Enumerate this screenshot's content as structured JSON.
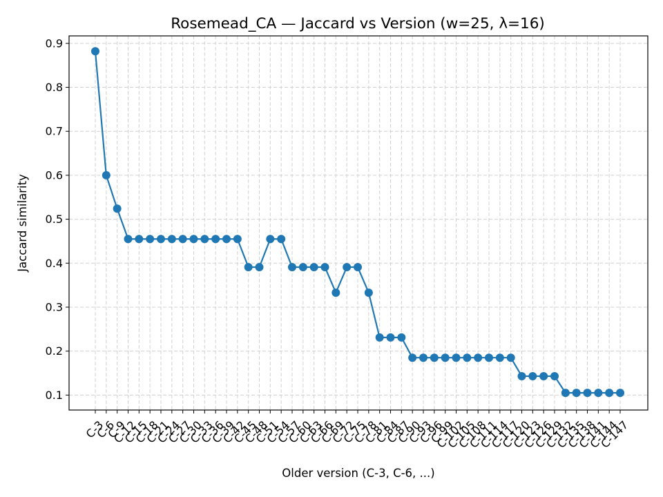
{
  "chart_data": {
    "type": "line",
    "title": "Rosemead_CA — Jaccard vs Version (w=25, λ=16)",
    "xlabel": "Older version (C-3, C-6, ...)",
    "ylabel": "Jaccard similarity",
    "grid": true,
    "line_color": "#1f77b4",
    "ylim": [
      0.066,
      0.917
    ],
    "yticks": [
      0.1,
      0.2,
      0.3,
      0.4,
      0.5,
      0.6,
      0.7,
      0.8,
      0.9
    ],
    "ytick_labels": [
      "0.1",
      "0.2",
      "0.3",
      "0.4",
      "0.5",
      "0.6",
      "0.7",
      "0.8",
      "0.9"
    ],
    "categories": [
      "C-3",
      "C-6",
      "C-9",
      "C-12",
      "C-15",
      "C-18",
      "C-21",
      "C-24",
      "C-27",
      "C-30",
      "C-33",
      "C-36",
      "C-39",
      "C-42",
      "C-45",
      "C-48",
      "C-51",
      "C-54",
      "C-57",
      "C-60",
      "C-63",
      "C-66",
      "C-69",
      "C-72",
      "C-75",
      "C-78",
      "C-81",
      "C-84",
      "C-87",
      "C-90",
      "C-93",
      "C-96",
      "C-99",
      "C-102",
      "C-105",
      "C-108",
      "C-111",
      "C-114",
      "C-117",
      "C-120",
      "C-123",
      "C-126",
      "C-129",
      "C-132",
      "C-135",
      "C-138",
      "C-141",
      "C-144",
      "C-147"
    ],
    "series": [
      {
        "values": [
          0.882,
          0.6,
          0.524,
          0.455,
          0.455,
          0.455,
          0.455,
          0.455,
          0.455,
          0.455,
          0.455,
          0.455,
          0.455,
          0.455,
          0.391,
          0.391,
          0.455,
          0.455,
          0.391,
          0.391,
          0.391,
          0.391,
          0.333,
          0.391,
          0.391,
          0.333,
          0.231,
          0.231,
          0.231,
          0.185,
          0.185,
          0.185,
          0.185,
          0.185,
          0.185,
          0.185,
          0.185,
          0.185,
          0.185,
          0.143,
          0.143,
          0.143,
          0.143,
          0.105,
          0.105,
          0.105,
          0.105,
          0.105,
          0.105
        ]
      }
    ]
  }
}
